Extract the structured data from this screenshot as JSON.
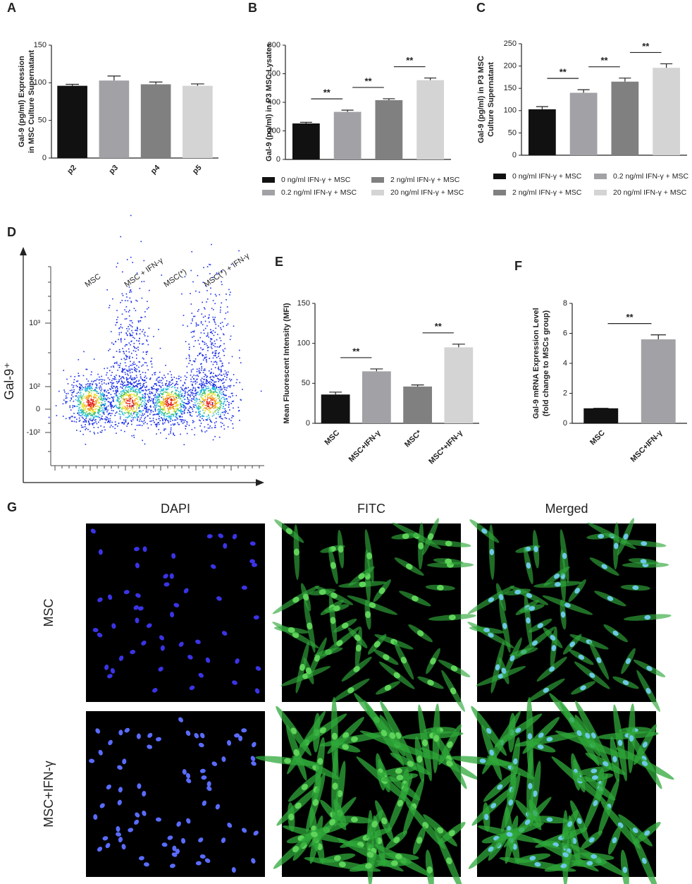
{
  "chart_data": [
    {
      "type": "bar",
      "panel_label": "A",
      "y_label": [
        "Gal-9 (pg/ml) Expression",
        "in MSC Culture Supernatant"
      ],
      "categories": [
        "p2",
        "p3",
        "p4",
        "p5"
      ],
      "values": [
        96,
        103,
        98,
        96
      ],
      "errors": [
        2,
        6,
        3,
        2.5
      ],
      "colors": [
        "#111111",
        "#a2a2a6",
        "#808080",
        "#d4d4d4"
      ],
      "ylim": [
        0,
        150
      ],
      "yticks": [
        0,
        50,
        100,
        150
      ]
    },
    {
      "type": "bar",
      "panel_label": "B",
      "y_label": [
        "Gal-9 (pg/ml) in P3 MSC Lysates"
      ],
      "categories": [
        "0 ng/ml IFN-γ + MSC",
        "0.2 ng/ml IFN-γ + MSC",
        "2 ng/ml IFN-γ + MSC",
        "20 ng/ml IFN-γ + MSC"
      ],
      "values": [
        252,
        333,
        415,
        555
      ],
      "errors": [
        8,
        12,
        10,
        15
      ],
      "colors": [
        "#111111",
        "#a2a2a6",
        "#808080",
        "#d4d4d4"
      ],
      "ylim": [
        0,
        800
      ],
      "yticks": [
        0,
        200,
        400,
        600,
        800
      ],
      "legend": "bottom",
      "significance": [
        {
          "label": "**",
          "between": [
            0,
            1
          ]
        },
        {
          "label": "**",
          "between": [
            1,
            2
          ]
        },
        {
          "label": "**",
          "between": [
            2,
            3
          ]
        }
      ]
    },
    {
      "type": "bar",
      "panel_label": "C",
      "y_label": [
        "Gal-9 (pg/ml) in P3 MSC",
        "Culture Supernatant"
      ],
      "categories": [
        "0 ng/ml IFN-γ + MSC",
        "0.2 ng/ml IFN-γ + MSC",
        "2 ng/ml IFN-γ + MSC",
        "20 ng/ml IFN-γ + MSC"
      ],
      "values": [
        103,
        140,
        165,
        196
      ],
      "errors": [
        6,
        7,
        8,
        9
      ],
      "colors": [
        "#111111",
        "#a2a2a6",
        "#808080",
        "#d4d4d4"
      ],
      "ylim": [
        0,
        250
      ],
      "yticks": [
        0,
        50,
        100,
        150,
        200,
        250
      ],
      "legend": "bottom",
      "significance": [
        {
          "label": "**",
          "between": [
            0,
            1
          ]
        },
        {
          "label": "**",
          "between": [
            1,
            2
          ]
        },
        {
          "label": "**",
          "between": [
            2,
            3
          ]
        }
      ]
    },
    {
      "type": "bar",
      "panel_label": "E",
      "y_label": [
        "Mean Fluorescent Intensity (MFI)"
      ],
      "categories": [
        "MSC",
        "MSC+IFN-γ",
        "MSC*",
        "MSC*+IFN-γ"
      ],
      "values": [
        36,
        65,
        46,
        95
      ],
      "errors": [
        3,
        3,
        2,
        4
      ],
      "colors": [
        "#111111",
        "#a2a2a6",
        "#808080",
        "#d4d4d4"
      ],
      "ylim": [
        0,
        150
      ],
      "yticks": [
        0,
        50,
        100,
        150
      ],
      "significance": [
        {
          "label": "**",
          "between": [
            0,
            1
          ]
        },
        {
          "label": "**",
          "between": [
            2,
            3
          ]
        }
      ]
    },
    {
      "type": "bar",
      "panel_label": "F",
      "y_label": [
        "Gal-9 mRNA Expression Level",
        "(fold change to MSCs group)"
      ],
      "categories": [
        "MSC",
        "MSC+IFN-γ"
      ],
      "values": [
        1,
        5.6
      ],
      "errors": [
        0,
        0.3
      ],
      "colors": [
        "#111111",
        "#a2a2a6"
      ],
      "ylim": [
        0,
        8
      ],
      "yticks": [
        0,
        2,
        4,
        6,
        8
      ],
      "significance": [
        {
          "label": "**",
          "between": [
            0,
            1
          ]
        }
      ]
    }
  ],
  "flow_panel": {
    "panel_label": "D",
    "y_label": "Gal-9⁺",
    "y_tick_labels": [
      "10³",
      "10²",
      "0",
      "-10²"
    ],
    "group_labels": [
      "MSC",
      "MSC + IFN-γ",
      "MSC(*)",
      "MSC(*) + IFN-γ"
    ]
  },
  "image_panel": {
    "panel_label": "G",
    "column_titles": [
      "DAPI",
      "FITC",
      "Merged"
    ],
    "row_labels": [
      "MSC",
      "MSC+IFN-γ"
    ]
  }
}
